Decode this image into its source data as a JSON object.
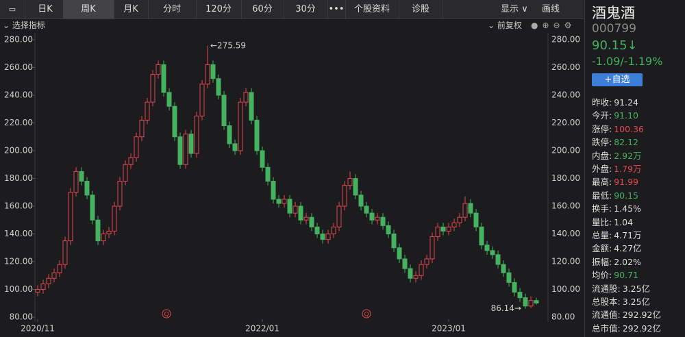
{
  "toolbar": {
    "tabs": [
      "日K",
      "周K",
      "月K",
      "分时",
      "120分",
      "60分",
      "30分",
      "•••",
      "个股资料",
      "诊股"
    ],
    "selected": 1,
    "right": [
      "显示 ∨",
      "画线"
    ]
  },
  "indicator_bar": {
    "left": "⌄ 选择指标",
    "right": "⌄ 前复权"
  },
  "chart_data": {
    "type": "candlestick",
    "up_color": "#e5474f",
    "down_color": "#45b25f",
    "ylim": [
      80,
      280
    ],
    "yticks": [
      {
        "value": 80,
        "label": "80.00"
      },
      {
        "value": 100,
        "label": "100.00"
      },
      {
        "value": 120,
        "label": "120.00"
      },
      {
        "value": 140,
        "label": "140.00"
      },
      {
        "value": 160,
        "label": "160.00"
      },
      {
        "value": 180,
        "label": "180.00"
      },
      {
        "value": 200,
        "label": "200.00"
      },
      {
        "value": 220,
        "label": "220.00"
      },
      {
        "value": 240,
        "label": "240.00"
      },
      {
        "value": 260,
        "label": "260.00"
      },
      {
        "value": 280,
        "label": "280.00"
      }
    ],
    "xlim": [
      -0.5,
      91.5
    ],
    "xticks": [
      {
        "value": 0,
        "label": "2020/11"
      },
      {
        "value": 41,
        "label": "2022/01"
      },
      {
        "value": 75,
        "label": "2023/01"
      }
    ],
    "open": [
      98,
      100,
      104,
      108,
      112,
      118,
      135,
      170,
      185,
      178,
      168,
      150,
      135,
      140,
      142,
      160,
      178,
      190,
      195,
      210,
      222,
      235,
      255,
      262,
      242,
      232,
      210,
      190,
      212,
      198,
      225,
      248,
      262,
      252,
      240,
      218,
      205,
      200,
      235,
      242,
      222,
      200,
      188,
      178,
      165,
      162,
      165,
      155,
      160,
      150,
      152,
      145,
      140,
      136,
      140,
      145,
      160,
      175,
      180,
      168,
      160,
      155,
      150,
      152,
      146,
      140,
      130,
      122,
      115,
      108,
      110,
      118,
      122,
      138,
      145,
      142,
      145,
      148,
      152,
      162,
      155,
      145,
      132,
      128,
      125,
      118,
      112,
      105,
      98,
      94,
      88,
      92
    ],
    "high": [
      103,
      107,
      111,
      115,
      121,
      138,
      173,
      188,
      188,
      181,
      171,
      153,
      143,
      145,
      163,
      181,
      193,
      198,
      213,
      225,
      238,
      258,
      265,
      265,
      245,
      235,
      213,
      215,
      215,
      228,
      251,
      275.59,
      265,
      255,
      243,
      221,
      208,
      238,
      245,
      245,
      225,
      203,
      191,
      181,
      168,
      168,
      168,
      163,
      163,
      155,
      155,
      148,
      143,
      143,
      148,
      163,
      178,
      185,
      183,
      171,
      163,
      158,
      155,
      155,
      149,
      143,
      133,
      125,
      118,
      113,
      121,
      125,
      141,
      148,
      148,
      148,
      151,
      155,
      167,
      165,
      158,
      148,
      135,
      131,
      128,
      121,
      115,
      108,
      101,
      97,
      95,
      94
    ],
    "low": [
      95,
      97,
      101,
      105,
      109,
      115,
      132,
      167,
      175,
      165,
      147,
      132,
      132,
      137,
      139,
      157,
      175,
      187,
      192,
      207,
      219,
      232,
      252,
      239,
      229,
      207,
      187,
      187,
      195,
      195,
      222,
      245,
      249,
      237,
      215,
      202,
      197,
      197,
      232,
      219,
      197,
      185,
      175,
      162,
      159,
      159,
      152,
      152,
      147,
      147,
      142,
      137,
      133,
      133,
      137,
      142,
      157,
      172,
      165,
      157,
      152,
      147,
      147,
      143,
      137,
      127,
      119,
      112,
      105,
      105,
      107,
      115,
      119,
      135,
      139,
      139,
      142,
      145,
      149,
      152,
      142,
      129,
      125,
      122,
      115,
      109,
      102,
      95,
      91,
      86.14,
      86.5,
      89
    ],
    "close": [
      100,
      104,
      108,
      112,
      118,
      135,
      170,
      185,
      178,
      168,
      150,
      135,
      140,
      142,
      160,
      178,
      190,
      195,
      210,
      222,
      235,
      255,
      262,
      242,
      232,
      210,
      190,
      212,
      198,
      225,
      248,
      262,
      252,
      240,
      218,
      205,
      200,
      235,
      242,
      222,
      200,
      188,
      178,
      165,
      162,
      165,
      155,
      160,
      150,
      152,
      145,
      140,
      136,
      140,
      145,
      160,
      175,
      180,
      168,
      160,
      155,
      150,
      152,
      146,
      140,
      130,
      122,
      115,
      108,
      110,
      118,
      122,
      138,
      145,
      142,
      145,
      148,
      152,
      162,
      155,
      145,
      132,
      128,
      125,
      118,
      112,
      105,
      98,
      94,
      88,
      92,
      90.15
    ],
    "annotations": [
      {
        "label": "←275.59",
        "value": 275.59,
        "x": 31
      },
      {
        "label": "86.14→",
        "value": 86.14,
        "x": 89
      }
    ],
    "quarter_markers": [
      {
        "label": "Q",
        "x": 23.5
      },
      {
        "label": "Q",
        "x": 60
      }
    ]
  },
  "quote": {
    "name": "酒鬼酒",
    "code": "000799",
    "price": "90.15↓",
    "change": "-1.09/-1.19%",
    "button": "+自选",
    "color": "#45b25f",
    "stats": [
      {
        "label": "昨收:",
        "value": "91.24",
        "color": "#dddddd"
      },
      {
        "label": "今开:",
        "value": "91.10",
        "color": "#45b25f"
      },
      {
        "label": "涨停:",
        "value": "100.36",
        "color": "#e5474f"
      },
      {
        "label": "跌停:",
        "value": "82.12",
        "color": "#45b25f"
      },
      {
        "label": "内盘:",
        "value": "2.92万",
        "color": "#45b25f"
      },
      {
        "label": "外盘:",
        "value": "1.79万",
        "color": "#e5474f"
      },
      {
        "label": "最高:",
        "value": "91.99",
        "color": "#e5474f"
      },
      {
        "label": "最低:",
        "value": "90.15",
        "color": "#45b25f"
      },
      {
        "label": "换手:",
        "value": "1.45%",
        "color": "#dddddd"
      },
      {
        "label": "量比:",
        "value": "1.04",
        "color": "#dddddd"
      },
      {
        "label": "总量:",
        "value": "4.71万",
        "color": "#dddddd"
      },
      {
        "label": "金额:",
        "value": "4.27亿",
        "color": "#dddddd"
      },
      {
        "label": "振幅:",
        "value": "2.02%",
        "color": "#dddddd"
      },
      {
        "label": "均价:",
        "value": "90.71",
        "color": "#45b25f"
      },
      {
        "label": "流通股:",
        "value": "3.25亿",
        "color": "#dddddd"
      },
      {
        "label": "总股本:",
        "value": "3.25亿",
        "color": "#dddddd"
      },
      {
        "label": "流通值:",
        "value": "292.92亿",
        "color": "#dddddd"
      },
      {
        "label": "总市值:",
        "value": "292.92亿",
        "color": "#dddddd"
      }
    ]
  }
}
